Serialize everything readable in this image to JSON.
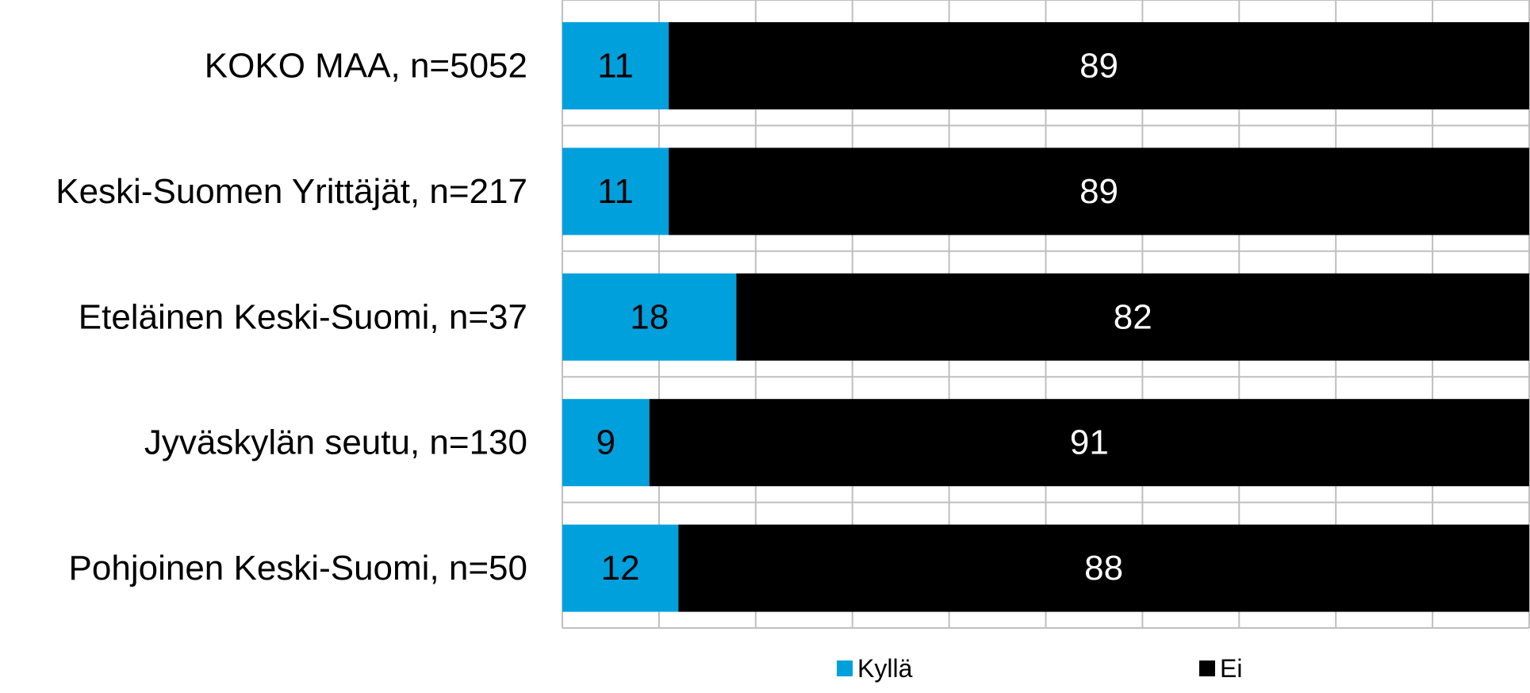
{
  "chart_data": {
    "type": "bar",
    "orientation": "horizontal",
    "stacked": true,
    "percent_scale": true,
    "categories": [
      "KOKO MAA, n=5052",
      "Keski-Suomen Yrittäjät, n=217",
      "Eteläinen Keski-Suomi, n=37",
      "Jyväskylän seutu, n=130",
      "Pohjoinen Keski-Suomi, n=50"
    ],
    "series": [
      {
        "name": "Kyllä",
        "color": "#00A0DC",
        "label_color": "#000000",
        "values": [
          11,
          11,
          18,
          9,
          12
        ]
      },
      {
        "name": "Ei",
        "color": "#000000",
        "label_color": "#FFFFFF",
        "values": [
          89,
          89,
          82,
          91,
          88
        ]
      }
    ],
    "xlim": [
      0,
      100
    ],
    "x_gridline_step": 10,
    "grid": true,
    "grid_color": "#BFBFBF",
    "legend_position": "bottom"
  }
}
